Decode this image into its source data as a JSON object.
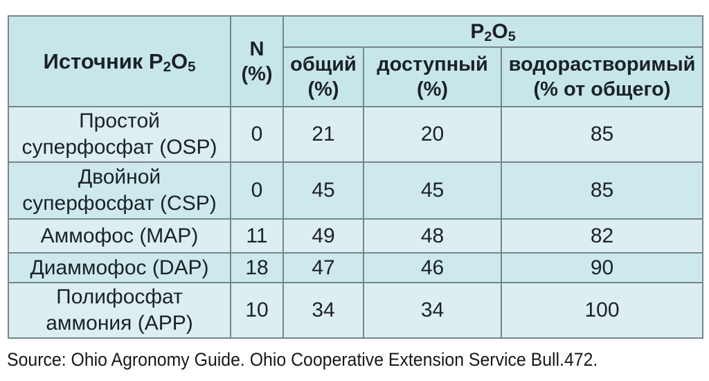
{
  "colors": {
    "header_bg": "#c7e6e9",
    "row_light_bg": "#ddeef3",
    "row_cyan_bg": "#cde9ed",
    "border": "#75868a",
    "text": "#1b2126",
    "page_bg": "#ffffff"
  },
  "table": {
    "header": {
      "source": {
        "pre": "Источник P",
        "sub_a": "2",
        "mid": "O",
        "sub_b": "5"
      },
      "n": "N\n(%)",
      "p2o5": {
        "pre": "P",
        "sub_a": "2",
        "mid": "O",
        "sub_b": "5"
      },
      "total": "общий\n(%)",
      "available": "доступный\n(%)",
      "water_soluble": "водорастворимый\n(% от общего)"
    },
    "rows": [
      {
        "name": "Простой\nсуперфосфат (OSP)",
        "n": "0",
        "total": "21",
        "available": "20",
        "water": "85"
      },
      {
        "name": "Двойной\nсуперфосфат (CSP)",
        "n": "0",
        "total": "45",
        "available": "45",
        "water": "85"
      },
      {
        "name": "Аммофос (MAP)",
        "n": "11",
        "total": "49",
        "available": "48",
        "water": "82"
      },
      {
        "name": "Диаммофос (DAP)",
        "n": "18",
        "total": "47",
        "available": "46",
        "water": "90"
      },
      {
        "name": "Полифосфат\nаммония (APP)",
        "n": "10",
        "total": "34",
        "available": "34",
        "water": "100"
      }
    ],
    "source_note": "Source: Ohio Agronomy Guide. Ohio Cooperative Extension Service Bull.472."
  }
}
